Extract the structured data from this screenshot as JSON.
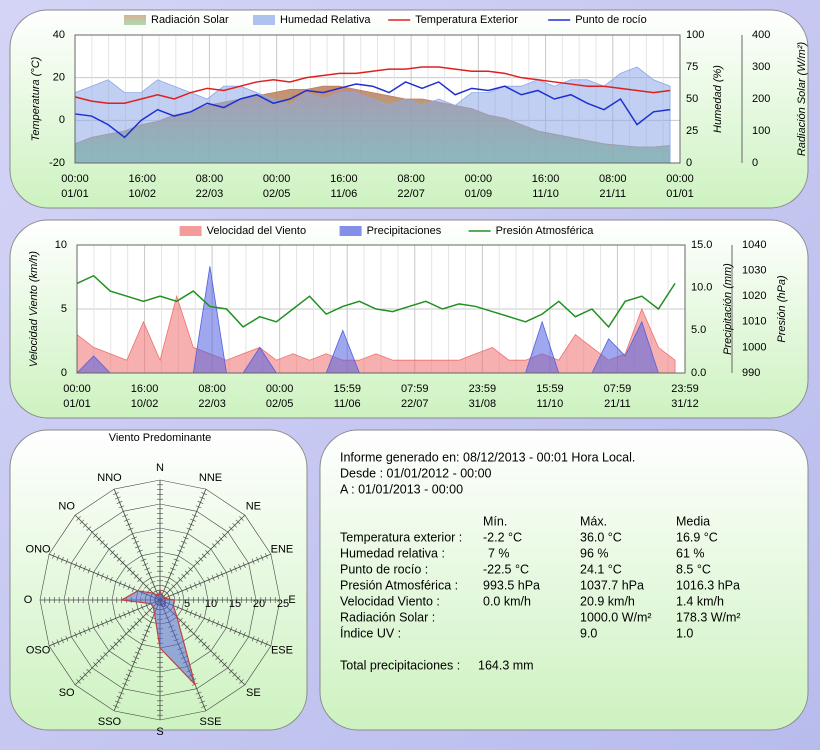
{
  "chart_data": [
    {
      "type": "timeseries",
      "ylabel": "Temperatura (°C)",
      "y2label": "Humedad (%)",
      "y3label": "Radiación Solar (W/m²)",
      "xlim": [
        0,
        366
      ],
      "xticks": [
        {
          "value": 0,
          "label": [
            "00:00",
            "01/01"
          ]
        },
        {
          "value": 40.67,
          "label": [
            "16:00",
            "10/02"
          ]
        },
        {
          "value": 81.33,
          "label": [
            "08:00",
            "22/03"
          ]
        },
        {
          "value": 122,
          "label": [
            "00:00",
            "02/05"
          ]
        },
        {
          "value": 162.67,
          "label": [
            "16:00",
            "11/06"
          ]
        },
        {
          "value": 203.33,
          "label": [
            "08:00",
            "22/07"
          ]
        },
        {
          "value": 244,
          "label": [
            "00:00",
            "01/09"
          ]
        },
        {
          "value": 284.67,
          "label": [
            "16:00",
            "11/10"
          ]
        },
        {
          "value": 325.33,
          "label": [
            "08:00",
            "21/11"
          ]
        },
        {
          "value": 366,
          "label": [
            "00:00",
            "01/01"
          ]
        }
      ],
      "ylim": [
        -20,
        40
      ],
      "yticks": [
        -20,
        0,
        20,
        40
      ],
      "y2lim": [
        0,
        100
      ],
      "y2ticks": [
        0,
        25,
        50,
        75,
        100
      ],
      "y3lim": [
        0,
        400
      ],
      "y3ticks": [
        0,
        100,
        200,
        300,
        400
      ],
      "grid": true,
      "x": [
        0,
        10,
        20,
        30,
        40,
        50,
        60,
        70,
        80,
        90,
        100,
        110,
        120,
        130,
        140,
        150,
        160,
        170,
        180,
        190,
        200,
        210,
        220,
        230,
        240,
        250,
        260,
        270,
        280,
        290,
        300,
        310,
        320,
        330,
        340,
        350,
        360
      ],
      "series": [
        {
          "name": "Radiación Solar",
          "color": "#c08060",
          "style": "area",
          "axis": "y3",
          "values": [
            60,
            80,
            90,
            100,
            120,
            130,
            150,
            160,
            180,
            190,
            200,
            210,
            220,
            230,
            230,
            240,
            240,
            230,
            220,
            210,
            200,
            200,
            190,
            180,
            170,
            150,
            140,
            120,
            100,
            90,
            80,
            70,
            60,
            55,
            50,
            50,
            55
          ]
        },
        {
          "name": "Humedad Relativa",
          "color": "#8ca8e8",
          "style": "area",
          "axis": "y2",
          "values": [
            55,
            60,
            65,
            55,
            55,
            65,
            60,
            55,
            50,
            60,
            60,
            55,
            50,
            45,
            55,
            50,
            55,
            55,
            50,
            45,
            50,
            45,
            50,
            45,
            55,
            55,
            60,
            60,
            65,
            60,
            65,
            65,
            60,
            70,
            75,
            65,
            60
          ]
        },
        {
          "name": "Temperatura Exterior",
          "color": "#e02020",
          "style": "line",
          "values": [
            11,
            9,
            8,
            8,
            10,
            12,
            10,
            13,
            15,
            14,
            16,
            18,
            19,
            18,
            20,
            21,
            22,
            22,
            23,
            24,
            24,
            25,
            25,
            24,
            23,
            23,
            22,
            20,
            19,
            18,
            17,
            16,
            16,
            15,
            14,
            13,
            14
          ]
        },
        {
          "name": "Punto de rocío",
          "color": "#2030d0",
          "style": "line",
          "values": [
            3,
            2,
            -2,
            -8,
            0,
            5,
            2,
            4,
            8,
            6,
            10,
            12,
            8,
            10,
            14,
            13,
            15,
            17,
            16,
            13,
            18,
            15,
            18,
            12,
            15,
            14,
            16,
            12,
            14,
            10,
            12,
            8,
            5,
            10,
            -2,
            4,
            5
          ]
        }
      ]
    },
    {
      "type": "timeseries",
      "ylabel": "Velocidad Viento (km/h)",
      "y2label": "Precipitación (mm)",
      "y3label": "Presión (hPa)",
      "xlim": [
        0,
        366
      ],
      "xticks": [
        {
          "value": 0,
          "label": [
            "00:00",
            "01/01"
          ]
        },
        {
          "value": 40.67,
          "label": [
            "16:00",
            "10/02"
          ]
        },
        {
          "value": 81.33,
          "label": [
            "08:00",
            "22/03"
          ]
        },
        {
          "value": 122,
          "label": [
            "00:00",
            "02/05"
          ]
        },
        {
          "value": 162.67,
          "label": [
            "15:59",
            "11/06"
          ]
        },
        {
          "value": 203.33,
          "label": [
            "07:59",
            "22/07"
          ]
        },
        {
          "value": 244,
          "label": [
            "23:59",
            "31/08"
          ]
        },
        {
          "value": 284.67,
          "label": [
            "15:59",
            "11/10"
          ]
        },
        {
          "value": 325.33,
          "label": [
            "07:59",
            "21/11"
          ]
        },
        {
          "value": 366,
          "label": [
            "23:59",
            "31/12"
          ]
        }
      ],
      "ylim": [
        0,
        10
      ],
      "yticks": [
        0,
        5,
        10
      ],
      "y2lim": [
        0,
        15
      ],
      "y2ticks": [
        {
          "value": 0,
          "label": "0.0"
        },
        {
          "value": 5,
          "label": "5.0"
        },
        {
          "value": 10,
          "label": "10.0"
        },
        {
          "value": 15,
          "label": "15.0"
        }
      ],
      "y3lim": [
        990,
        1040
      ],
      "y3ticks": [
        990,
        1000,
        1010,
        1020,
        1030,
        1040
      ],
      "grid": true,
      "x": [
        0,
        10,
        20,
        30,
        40,
        50,
        60,
        70,
        80,
        90,
        100,
        110,
        120,
        130,
        140,
        150,
        160,
        170,
        180,
        190,
        200,
        210,
        220,
        230,
        240,
        250,
        260,
        270,
        280,
        290,
        300,
        310,
        320,
        330,
        340,
        350,
        360
      ],
      "series": [
        {
          "name": "Velocidad del Viento",
          "color": "#f07070",
          "style": "area",
          "values": [
            3,
            2,
            1.5,
            1,
            4,
            1,
            6,
            2,
            1.5,
            1,
            1.5,
            2,
            1,
            1.5,
            1,
            1.5,
            1,
            1,
            1.5,
            1,
            1,
            1,
            1,
            1,
            1.5,
            2,
            1,
            1,
            1.5,
            1,
            3,
            2,
            1,
            1.5,
            5,
            2,
            1
          ]
        },
        {
          "name": "Precipitaciones",
          "color": "#5060e0",
          "style": "area",
          "axis": "y2",
          "values": [
            0,
            2,
            0,
            0,
            0,
            0,
            0,
            0,
            12.5,
            0,
            0,
            3,
            0,
            0,
            0,
            0,
            5,
            0,
            0,
            0,
            0,
            0,
            0,
            0,
            0,
            0,
            0,
            0,
            6,
            0,
            0,
            0,
            4,
            2,
            6,
            0,
            0
          ]
        },
        {
          "name": "Presión Atmosférica",
          "color": "#209020",
          "style": "line",
          "axis": "y3",
          "values": [
            1025,
            1028,
            1022,
            1020,
            1018,
            1020,
            1018,
            1022,
            1016,
            1015,
            1008,
            1012,
            1010,
            1015,
            1020,
            1013,
            1016,
            1018,
            1015,
            1014,
            1016,
            1018,
            1015,
            1017,
            1016,
            1014,
            1012,
            1010,
            1013,
            1018,
            1012,
            1015,
            1008,
            1018,
            1020,
            1015,
            1025
          ]
        }
      ]
    },
    {
      "type": "radar",
      "title": "Viento Predominante",
      "categories": [
        "N",
        "NNE",
        "NE",
        "ENE",
        "E",
        "ESE",
        "SE",
        "SSE",
        "S",
        "SSO",
        "SO",
        "OSO",
        "O",
        "ONO",
        "NO",
        "NNO"
      ],
      "values": [
        2,
        1,
        1,
        1,
        3,
        3,
        5,
        19,
        10,
        3,
        2,
        2,
        8,
        5,
        2,
        1
      ],
      "rlim": [
        0,
        25
      ],
      "rticks": [
        0,
        5,
        10,
        15,
        20,
        25
      ],
      "color": "#5a6ad8",
      "edge": "#c04040"
    }
  ],
  "report": {
    "generated": "Informe generado en: 08/12/2013 - 00:01 Hora Local.",
    "from": "Desde : 01/01/2012 - 00:00",
    "to": "A : 01/01/2013 - 00:00",
    "columns": [
      "Mín.",
      "Máx.",
      "Media"
    ],
    "rows": [
      {
        "label": "Temperatura exterior :",
        "min": "-2.2 °C",
        "max": "36.0 °C",
        "mean": "16.9 °C"
      },
      {
        "label": "Humedad relativa :",
        "min": "7 %",
        "max": "96 %",
        "mean": "61 %"
      },
      {
        "label": "Punto de rocío :",
        "min": "-22.5 °C",
        "max": "24.1 °C",
        "mean": "8.5 °C"
      },
      {
        "label": "Presión Atmosférica :",
        "min": "993.5 hPa",
        "max": "1037.7 hPa",
        "mean": "1016.3 hPa"
      },
      {
        "label": "Velocidad Viento :",
        "min": "0.0 km/h",
        "max": "20.9 km/h",
        "mean": "1.4 km/h"
      },
      {
        "label": "Radiación Solar :",
        "max": "1000.0 W/m²",
        "mean": "178.3 W/m²"
      },
      {
        "label": "Índice UV :",
        "max": "9.0",
        "mean": "1.0"
      }
    ],
    "total_label": "Total precipitaciones :",
    "total": "164.3 mm"
  }
}
